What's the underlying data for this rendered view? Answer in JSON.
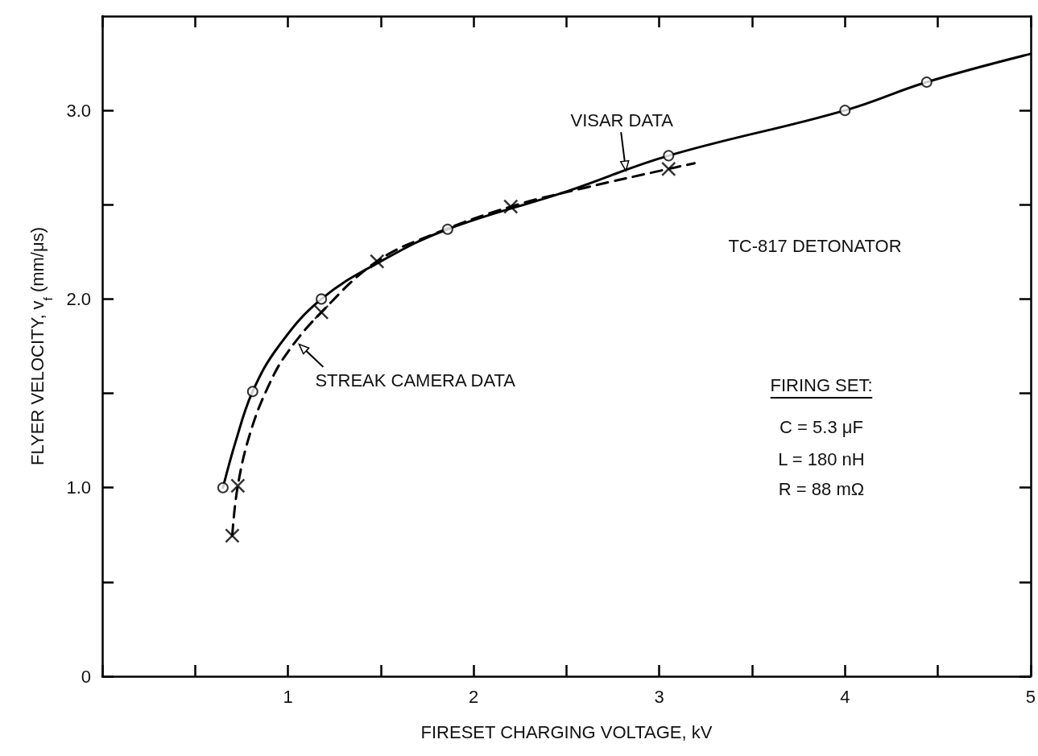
{
  "chart_data": {
    "type": "line",
    "xlabel": "FIRESET CHARGING VOLTAGE, kV",
    "ylabel": "FLYER VELOCITY, v$_{f}$ (mm/μs)",
    "xlim": [
      0,
      5
    ],
    "ylim": [
      0,
      3.5
    ],
    "xticks": [
      {
        "value": 0,
        "label": null
      },
      {
        "value": 0.5,
        "label": null
      },
      1,
      {
        "value": 1.5,
        "label": null
      },
      2,
      {
        "value": 2.5,
        "label": null
      },
      3,
      {
        "value": 3.5,
        "label": null
      },
      4,
      {
        "value": 4.5,
        "label": null
      },
      5
    ],
    "yticks": [
      0,
      {
        "value": 0.5,
        "label": null
      },
      {
        "value": 1,
        "label": "1.0"
      },
      {
        "value": 1.5,
        "label": null
      },
      {
        "value": 2,
        "label": "2.0"
      },
      {
        "value": 2.5,
        "label": null
      },
      {
        "value": 3,
        "label": "3.0"
      }
    ],
    "grid": false,
    "series": [
      {
        "color": "#000000",
        "marker": "none",
        "line_style": "solid",
        "x": [
          0.65,
          0.72,
          0.81,
          0.95,
          1.18,
          1.5,
          1.86,
          2.5,
          3.05,
          4.0,
          4.44,
          5.0
        ],
        "values": [
          1.0,
          1.25,
          1.51,
          1.75,
          2.0,
          2.2,
          2.37,
          2.57,
          2.76,
          3.0,
          3.15,
          3.3
        ]
      },
      {
        "type": "scatter",
        "color": "#000000",
        "marker": "circle",
        "x": [
          0.65,
          0.81,
          1.18,
          1.86,
          3.05,
          4.0,
          4.44
        ],
        "values": [
          1.0,
          1.51,
          2.0,
          2.37,
          2.76,
          3.0,
          3.15
        ]
      },
      {
        "color": "#000000",
        "marker": "none",
        "line_style": "dashed",
        "x": [
          0.7,
          0.73,
          0.8,
          0.9,
          1.0,
          1.18,
          1.48,
          1.8,
          2.2,
          2.6,
          3.05,
          3.19
        ],
        "values": [
          0.745,
          1.01,
          1.3,
          1.55,
          1.72,
          1.93,
          2.2,
          2.35,
          2.49,
          2.59,
          2.69,
          2.72
        ]
      },
      {
        "type": "scatter",
        "color": "#000000",
        "marker": "cross",
        "x": [
          0.7,
          0.73,
          1.18,
          1.48,
          2.2,
          3.05
        ],
        "values": [
          0.745,
          1.01,
          1.93,
          2.2,
          2.49,
          2.69
        ]
      }
    ],
    "annotations": [
      {
        "text": "VISAR DATA",
        "x": 2.82,
        "y": 2.68
      },
      {
        "text": "STREAK CAMERA DATA",
        "x": 1.06,
        "y": 1.76
      },
      "TC-817 DETONATOR",
      "FIRING SET:",
      "C = 5.3 μF",
      "L = 180 nH",
      "R = 88 mΩ"
    ]
  }
}
